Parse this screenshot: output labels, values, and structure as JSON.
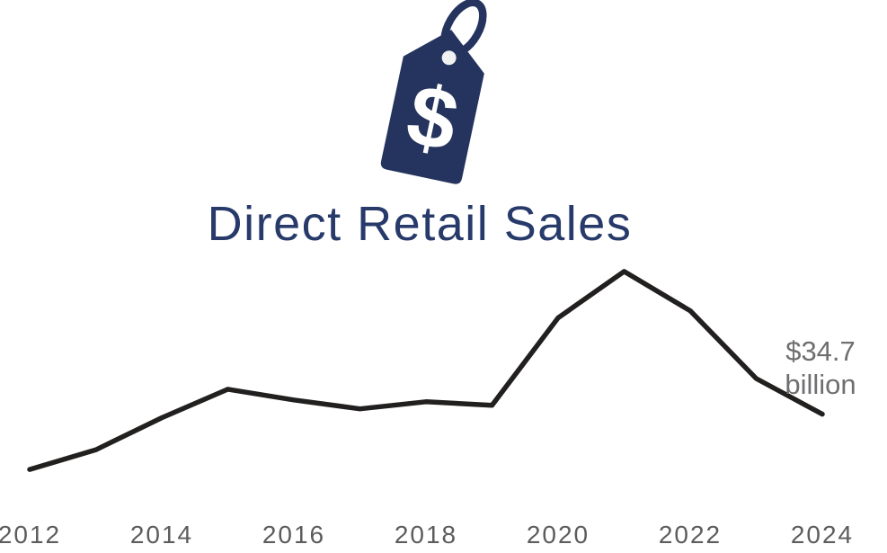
{
  "title": "Direct Retail Sales",
  "icon": {
    "name": "price-tag-dollar-icon",
    "glyph": "$"
  },
  "annotation": {
    "line1": "$34.7",
    "line2": "billion"
  },
  "colors": {
    "tag_navy": "#24345e",
    "title_navy": "#273a6a",
    "line_black": "#221f1f",
    "axis_gray": "#5c5c5e",
    "annotation_gray": "#6f6f71"
  },
  "chart_data": {
    "type": "line",
    "title": "Direct Retail Sales",
    "unit": "billions of USD",
    "x": [
      2012,
      2013,
      2014,
      2015,
      2016,
      2017,
      2018,
      2019,
      2020,
      2021,
      2022,
      2023,
      2024
    ],
    "values": [
      31.6,
      32.7,
      34.5,
      36.1,
      35.5,
      35.0,
      35.4,
      35.2,
      40.1,
      42.7,
      40.5,
      36.7,
      34.7
    ],
    "x_tick_labels": [
      "2012",
      "2014",
      "2016",
      "2018",
      "2020",
      "2022",
      "2024"
    ],
    "annotation_value": 34.7,
    "annotation_text": "$34.7 billion",
    "ylim": [
      30,
      44
    ],
    "grid": false,
    "legend": false,
    "axis_lines": false
  }
}
